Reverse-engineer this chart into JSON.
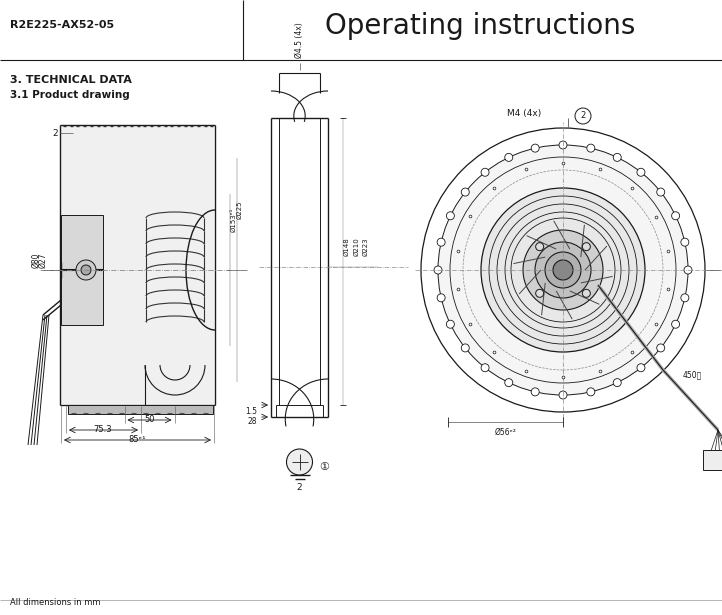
{
  "model": "R2E225-AX52-05",
  "title": "Operating instructions",
  "section": "3. TECHNICAL DATA",
  "subsection": "3.1 Product drawing",
  "footer": "All dimensions in mm",
  "bg_color": "#ffffff",
  "lc": "#1a1a1a",
  "gray1": "#aaaaaa",
  "gray2": "#cccccc",
  "gray3": "#e0e0e0",
  "gray4": "#888888",
  "centerline_color": "#888888",
  "fig_width": 7.22,
  "fig_height": 6.15
}
